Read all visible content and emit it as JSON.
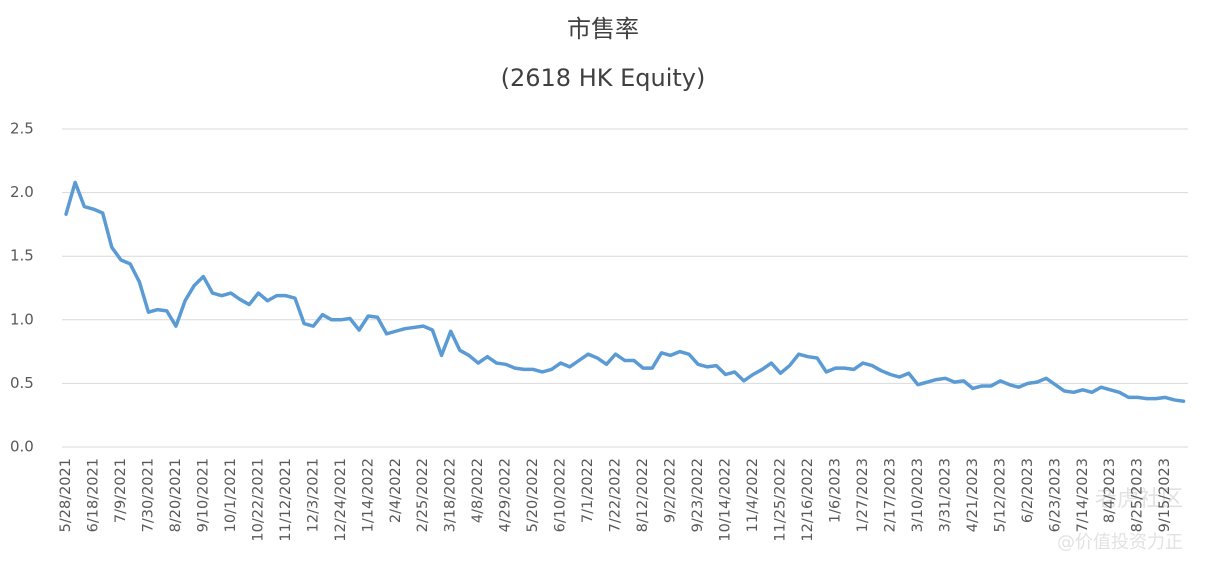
{
  "chart_data": {
    "type": "line",
    "title": "市售率",
    "subtitle": "(2618 HK Equity)",
    "categories": [
      "5/28/2021",
      null,
      null,
      "6/18/2021",
      null,
      null,
      "7/9/2021",
      null,
      null,
      "7/30/2021",
      null,
      null,
      "8/20/2021",
      null,
      null,
      "9/10/2021",
      null,
      null,
      "10/1/2021",
      null,
      null,
      "10/22/2021",
      null,
      null,
      "11/12/2021",
      null,
      null,
      "12/3/2021",
      null,
      null,
      "12/24/2021",
      null,
      null,
      "1/14/2022",
      null,
      null,
      "2/4/2022",
      null,
      null,
      "2/25/2022",
      null,
      null,
      "3/18/2022",
      null,
      null,
      "4/8/2022",
      null,
      null,
      "4/29/2022",
      null,
      null,
      "5/20/2022",
      null,
      null,
      "6/10/2022",
      null,
      null,
      "7/1/2022",
      null,
      null,
      "7/22/2022",
      null,
      null,
      "8/12/2022",
      null,
      null,
      "9/2/2022",
      null,
      null,
      "9/23/2022",
      null,
      null,
      "10/14/2022",
      null,
      null,
      "11/4/2022",
      null,
      null,
      "11/25/2022",
      null,
      null,
      "12/16/2022",
      null,
      null,
      "1/6/2023",
      null,
      null,
      "1/27/2023",
      null,
      null,
      "2/17/2023",
      null,
      null,
      "3/10/2023",
      null,
      null,
      "3/31/2023",
      null,
      null,
      "4/21/2023",
      null,
      null,
      "5/12/2023",
      null,
      null,
      "6/2/2023",
      null,
      null,
      "6/23/2023",
      null,
      null,
      "7/14/2023",
      null,
      null,
      "8/4/2023",
      null,
      null,
      "8/25/2023",
      null,
      null,
      "9/15/2023",
      null,
      null
    ],
    "series": [
      {
        "color": "#5b9bd5",
        "values": [
          1.83,
          2.08,
          1.89,
          1.87,
          1.84,
          1.57,
          1.47,
          1.44,
          1.3,
          1.06,
          1.08,
          1.07,
          0.95,
          1.15,
          1.27,
          1.34,
          1.21,
          1.19,
          1.21,
          1.16,
          1.12,
          1.21,
          1.15,
          1.19,
          1.19,
          1.17,
          0.97,
          0.95,
          1.04,
          1.0,
          1.0,
          1.01,
          0.92,
          1.03,
          1.02,
          0.89,
          0.91,
          0.93,
          0.94,
          0.95,
          0.92,
          0.72,
          0.91,
          0.76,
          0.72,
          0.66,
          0.71,
          0.66,
          0.65,
          0.62,
          0.61,
          0.61,
          0.59,
          0.61,
          0.66,
          0.63,
          0.68,
          0.73,
          0.7,
          0.65,
          0.73,
          0.68,
          0.68,
          0.62,
          0.62,
          0.74,
          0.72,
          0.75,
          0.73,
          0.65,
          0.63,
          0.64,
          0.57,
          0.59,
          0.52,
          0.57,
          0.61,
          0.66,
          0.58,
          0.64,
          0.73,
          0.71,
          0.7,
          0.59,
          0.62,
          0.62,
          0.61,
          0.66,
          0.64,
          0.6,
          0.57,
          0.55,
          0.58,
          0.49,
          0.51,
          0.53,
          0.54,
          0.51,
          0.52,
          0.46,
          0.48,
          0.48,
          0.52,
          0.49,
          0.47,
          0.5,
          0.51,
          0.54,
          0.49,
          0.44,
          0.43,
          0.45,
          0.43,
          0.47,
          0.45,
          0.43,
          0.39,
          0.39,
          0.38,
          0.38,
          0.39,
          0.37,
          0.36
        ]
      }
    ],
    "ylim": [
      0,
      2.5
    ],
    "yticks": [
      {
        "value": 0,
        "label": "0.0"
      },
      0.5,
      {
        "value": 1,
        "label": "1.0"
      },
      1.5,
      {
        "value": 2,
        "label": "2.0"
      },
      2.5
    ],
    "grid": true,
    "watermark": [
      "老虎社区",
      "@价值投资力正"
    ]
  }
}
